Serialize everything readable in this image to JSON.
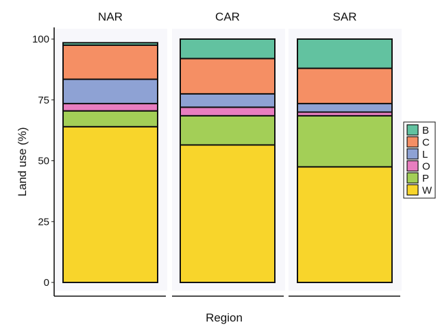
{
  "chart_data": {
    "type": "bar",
    "stacked": true,
    "facets": [
      "NAR",
      "CAR",
      "SAR"
    ],
    "xlabel": "Region",
    "ylabel": "Land use (%)",
    "ylim": [
      0,
      100
    ],
    "yticks": [
      0,
      25,
      50,
      75,
      100
    ],
    "legend_position": "right",
    "series": [
      {
        "name": "W",
        "color": "#f8d52b",
        "values": [
          64,
          56.5,
          47.5
        ]
      },
      {
        "name": "P",
        "color": "#a3cf57",
        "values": [
          6.5,
          12,
          21
        ]
      },
      {
        "name": "O",
        "color": "#e87ec0",
        "values": [
          3,
          3.5,
          1.5
        ]
      },
      {
        "name": "L",
        "color": "#8ea2d4",
        "values": [
          10,
          5.5,
          3.5
        ]
      },
      {
        "name": "C",
        "color": "#f58f64",
        "values": [
          14,
          14.5,
          14.5
        ]
      },
      {
        "name": "B",
        "color": "#62c2a0",
        "values": [
          1,
          8,
          12
        ]
      }
    ]
  }
}
